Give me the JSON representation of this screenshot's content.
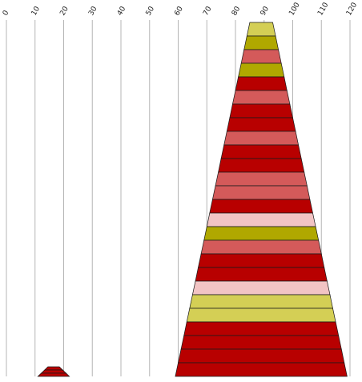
{
  "chart_data": {
    "type": "bar",
    "title": "",
    "xlabel": "",
    "ylabel": "",
    "xlim": [
      0,
      120
    ],
    "grid": true,
    "x_ticks": [
      "0",
      "10",
      "20",
      "30",
      "40",
      "50",
      "60",
      "70",
      "80",
      "90",
      "100",
      "110",
      "120"
    ],
    "shapes": [
      {
        "name": "large trapezoid",
        "center": 89,
        "top_width": 8,
        "bottom_width": 60,
        "band_colors": [
          "#D4CF55",
          "#B0A800",
          "#D45A5A",
          "#B0A800",
          "#B80000",
          "#D45A5A",
          "#B80000",
          "#B80000",
          "#D45A5A",
          "#B80000",
          "#B80000",
          "#D45A5A",
          "#D45A5A",
          "#B80000",
          "#F2C4C4",
          "#B0A800",
          "#D45A5A",
          "#B80000",
          "#B80000",
          "#F2C4C4",
          "#D4CF55",
          "#D4CF55",
          "#B80000",
          "#B80000",
          "#B80000",
          "#B80000"
        ]
      },
      {
        "name": "small trapezoid",
        "center": 16.5,
        "top_width": 4,
        "bottom_width": 11,
        "band_colors": [
          "#B80000",
          "#B80000",
          "#B80000"
        ]
      }
    ]
  }
}
